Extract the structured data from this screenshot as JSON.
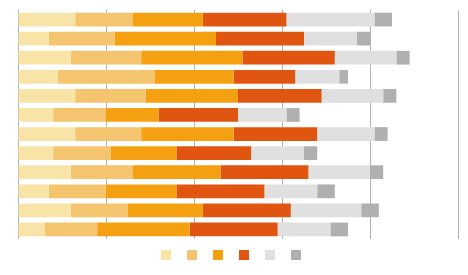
{
  "chart_data": {
    "type": "bar",
    "orientation": "horizontal",
    "stacked": true,
    "categories": [
      null,
      null,
      null,
      null,
      null,
      null,
      null,
      null,
      null,
      null,
      null,
      null
    ],
    "series": [
      {
        "color": "#f9e4a8",
        "values": [
          13,
          7,
          12,
          9,
          13,
          8,
          13,
          8,
          12,
          7,
          12,
          6
        ]
      },
      {
        "color": "#f5c46e",
        "values": [
          13,
          15,
          16,
          22,
          16,
          12,
          15,
          13,
          14,
          13,
          13,
          12
        ]
      },
      {
        "color": "#f5a010",
        "values": [
          16,
          23,
          23,
          18,
          21,
          12,
          21,
          15,
          20,
          16,
          17,
          21
        ]
      },
      {
        "color": "#e05510",
        "values": [
          19,
          20,
          21,
          14,
          19,
          18,
          19,
          17,
          20,
          20,
          20,
          20
        ]
      },
      {
        "color": "#e0e0e0",
        "values": [
          20,
          12,
          14,
          10,
          14,
          11,
          13,
          12,
          14,
          12,
          16,
          12
        ]
      },
      {
        "color": "#b0b0b0",
        "values": [
          4,
          3,
          3,
          2,
          3,
          3,
          3,
          3,
          3,
          4,
          4,
          4
        ]
      }
    ],
    "xlim": [
      0,
      100
    ],
    "xticks": [
      0,
      20,
      40,
      60,
      80,
      100
    ],
    "grid": true,
    "legend": "bottom",
    "tick_labels": false
  }
}
